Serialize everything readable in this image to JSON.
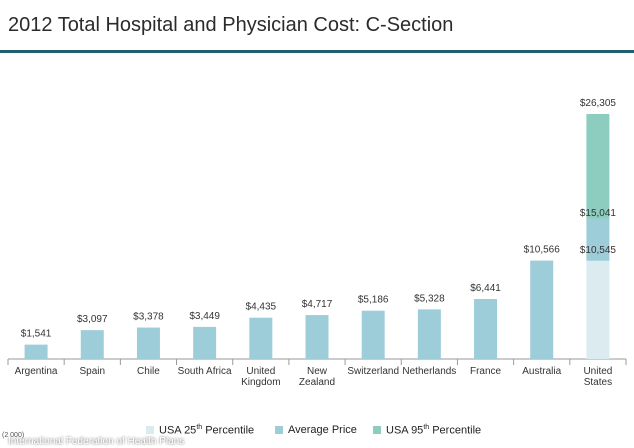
{
  "chart_data": {
    "type": "bar",
    "title": "2012 Total Hospital and Physician Cost: C-Section",
    "xlabel": "",
    "ylabel": "",
    "ylim": [
      0,
      28000
    ],
    "grid": false,
    "categories": [
      "Argentina",
      "Spain",
      "Chile",
      "South Africa",
      "United Kingdom",
      "New Zealand",
      "Switzerland",
      "Netherlands",
      "France",
      "Australia",
      "United States"
    ],
    "category_lines": [
      [
        "Argentina"
      ],
      [
        "Spain"
      ],
      [
        "Chile"
      ],
      [
        "South Africa"
      ],
      [
        "United",
        "Kingdom"
      ],
      [
        "New",
        "Zealand"
      ],
      [
        "Switzerland"
      ],
      [
        "Netherlands"
      ],
      [
        "France"
      ],
      [
        "Australia"
      ],
      [
        "United",
        "States"
      ]
    ],
    "values": [
      1541,
      3097,
      3378,
      3449,
      4435,
      4717,
      5186,
      5328,
      6441,
      10566,
      15041
    ],
    "value_labels": [
      "$1,541",
      "$3,097",
      "$3,378",
      "$3,449",
      "$4,435",
      "$4,717",
      "$5,186",
      "$5,328",
      "$6,441",
      "$10,566",
      "$15,041"
    ],
    "usa_range": {
      "category": "United States",
      "p25": 10545,
      "p25_label": "$10,545",
      "average": 15041,
      "average_label": "$15,041",
      "p95": 26305,
      "p95_label": "$26,305"
    },
    "legend": [
      {
        "base": "USA 25",
        "sup": "th",
        "rest": " Percentile",
        "color": "#dcebf0"
      },
      {
        "base": "Average Price",
        "sup": "",
        "rest": "",
        "color": "#9dcdd9"
      },
      {
        "base": "USA  95",
        "sup": "th",
        "rest": " Percentile",
        "color": "#8ccdbf"
      }
    ],
    "legend_position": "bottom"
  },
  "colors": {
    "average": "#9dcdd9",
    "p25": "#dcebf0",
    "p95": "#8ccdbf",
    "title_rule": "#1f5f70",
    "axis": "#9a9a9a"
  },
  "footer": {
    "source": "International Federation of Health Plans",
    "note": "(2 000)"
  }
}
